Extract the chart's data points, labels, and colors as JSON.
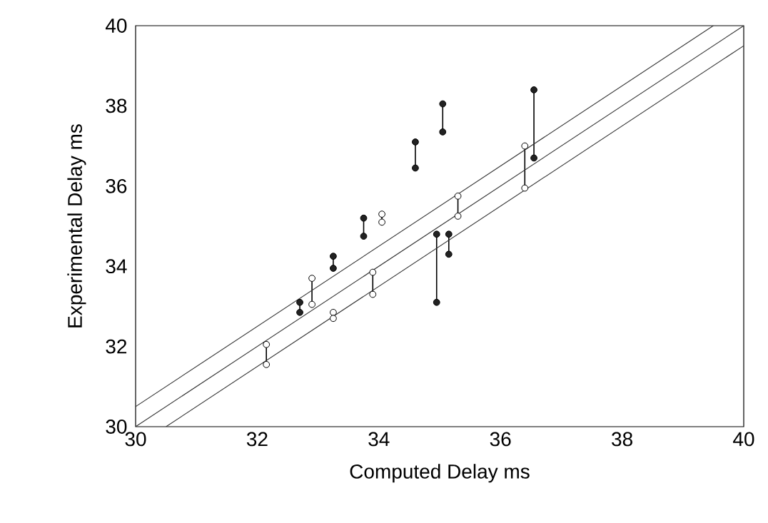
{
  "chart_data": {
    "type": "line",
    "xlabel": "Computed Delay ms",
    "ylabel": "Experimental Delay ms",
    "xlim": [
      30,
      40
    ],
    "ylim": [
      30,
      40
    ],
    "xticks": [
      30,
      32,
      34,
      36,
      38,
      40
    ],
    "yticks": [
      30,
      32,
      34,
      36,
      38,
      40
    ],
    "grid": false,
    "series": [
      {
        "color": "#222222",
        "marker": "circle",
        "x": [
          32.7,
          32.7,
          null,
          33.25,
          33.25,
          null,
          33.75,
          33.75,
          null,
          34.6,
          34.6,
          null,
          35.05,
          35.05,
          null,
          34.95,
          34.95,
          null,
          35.15,
          35.15,
          null,
          36.55,
          36.55
        ],
        "values": [
          33.1,
          32.85,
          null,
          34.25,
          33.95,
          null,
          35.2,
          34.75,
          null,
          37.1,
          36.45,
          null,
          38.05,
          37.35,
          null,
          34.8,
          33.1,
          null,
          34.8,
          34.3,
          null,
          38.4,
          36.7
        ]
      },
      {
        "color": "#ffffff",
        "marker": "circle",
        "x": [
          32.15,
          32.15,
          null,
          32.9,
          32.9,
          null,
          33.25,
          33.25,
          null,
          33.9,
          33.9,
          null,
          34.05,
          34.05,
          null,
          35.3,
          35.3,
          null,
          36.4,
          36.4
        ],
        "values": [
          32.05,
          31.55,
          null,
          33.7,
          33.05,
          null,
          32.85,
          32.7,
          null,
          33.85,
          33.3,
          null,
          35.3,
          35.1,
          null,
          35.75,
          35.25,
          null,
          37.0,
          35.95
        ]
      },
      {
        "color": "#333333",
        "marker": "none",
        "x": [
          30,
          39.5
        ],
        "values": [
          30.5,
          40
        ]
      },
      {
        "color": "#333333",
        "marker": "none",
        "x": [
          30,
          40
        ],
        "values": [
          30,
          40
        ]
      },
      {
        "color": "#333333",
        "marker": "none",
        "x": [
          30.5,
          40
        ],
        "values": [
          30,
          39.5
        ]
      }
    ]
  }
}
